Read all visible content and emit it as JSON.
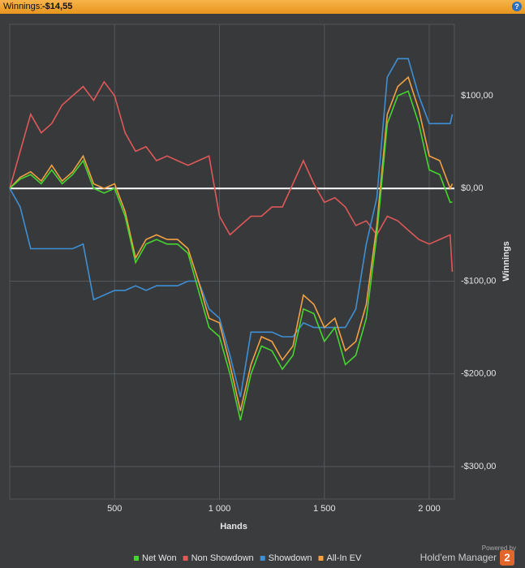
{
  "header": {
    "label": "Winnings:",
    "value": "-$14,55",
    "help": "?"
  },
  "logo": {
    "powered": "Powered by",
    "name": "Hold'em Manager",
    "badge": "2"
  },
  "chart_data": {
    "type": "line",
    "x_label": "Hands",
    "y_label": "Winnings",
    "xlim": [
      0,
      2120
    ],
    "ylim": [
      -335,
      177
    ],
    "xticks": [
      500,
      {
        "value": 1000,
        "label": "1 000"
      },
      {
        "value": 1500,
        "label": "1 500"
      },
      {
        "value": 2000,
        "label": "2 000"
      }
    ],
    "yticks": [
      {
        "value": 100,
        "label": "$100,00"
      },
      {
        "value": 0,
        "label": "$0,00"
      },
      {
        "value": -100,
        "label": "-$100,00"
      },
      {
        "value": -200,
        "label": "-$200,00"
      },
      {
        "value": -300,
        "label": "-$300,00"
      }
    ],
    "grid": true,
    "legend": "bottom",
    "x": [
      0,
      50,
      100,
      150,
      200,
      250,
      300,
      350,
      400,
      450,
      500,
      550,
      600,
      650,
      700,
      750,
      800,
      850,
      900,
      950,
      1000,
      1050,
      1100,
      1150,
      1200,
      1250,
      1300,
      1350,
      1400,
      1450,
      1500,
      1550,
      1600,
      1650,
      1700,
      1750,
      1800,
      1850,
      1900,
      1950,
      2000,
      2050,
      2100,
      2110
    ],
    "series": [
      {
        "name": "Net Won",
        "color": "#46d52e",
        "values": [
          0,
          10,
          15,
          5,
          20,
          5,
          15,
          30,
          0,
          -5,
          0,
          -30,
          -80,
          -60,
          -55,
          -60,
          -60,
          -70,
          -110,
          -150,
          -160,
          -200,
          -250,
          -200,
          -170,
          -175,
          -195,
          -180,
          -130,
          -135,
          -165,
          -150,
          -190,
          -180,
          -140,
          -50,
          70,
          100,
          105,
          70,
          20,
          15,
          -15,
          -14.55
        ]
      },
      {
        "name": "Non Showdown",
        "color": "#e05858",
        "values": [
          0,
          40,
          80,
          60,
          70,
          90,
          100,
          110,
          95,
          115,
          100,
          60,
          40,
          45,
          30,
          35,
          30,
          25,
          30,
          35,
          -30,
          -50,
          -40,
          -30,
          -30,
          -20,
          -20,
          5,
          30,
          5,
          -15,
          -10,
          -20,
          -40,
          -35,
          -50,
          -30,
          -35,
          -45,
          -55,
          -60,
          -55,
          -50,
          -90
        ]
      },
      {
        "name": "Showdown",
        "color": "#3f8fd4",
        "values": [
          0,
          -20,
          -65,
          -65,
          -65,
          -65,
          -65,
          -60,
          -120,
          -115,
          -110,
          -110,
          -105,
          -110,
          -105,
          -105,
          -105,
          -100,
          -100,
          -130,
          -140,
          -180,
          -225,
          -155,
          -155,
          -155,
          -160,
          -160,
          -145,
          -150,
          -150,
          -150,
          -150,
          -130,
          -60,
          -10,
          120,
          140,
          140,
          100,
          70,
          70,
          70,
          80
        ]
      },
      {
        "name": "All-In EV",
        "color": "#f2a043",
        "values": [
          0,
          12,
          18,
          8,
          25,
          8,
          18,
          35,
          5,
          0,
          5,
          -25,
          -75,
          -55,
          -50,
          -55,
          -55,
          -65,
          -100,
          -140,
          -145,
          -190,
          -240,
          -190,
          -160,
          -165,
          -185,
          -170,
          -115,
          -125,
          -150,
          -140,
          -175,
          -165,
          -125,
          -40,
          80,
          110,
          120,
          85,
          35,
          30,
          0,
          5
        ]
      }
    ]
  }
}
